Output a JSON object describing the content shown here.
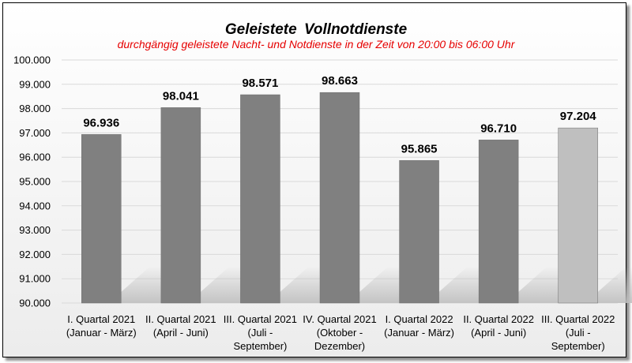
{
  "chart_data": {
    "type": "bar",
    "title": "Geleistete  Vollnotdienste",
    "subtitle": "durchgängig geleistete Nacht- und Notdienste in der Zeit von 20:00 bis 06:00 Uhr",
    "categories": [
      [
        "I. Quartal 2021",
        "(Januar - März)"
      ],
      [
        "II. Quartal 2021",
        "(April - Juni)"
      ],
      [
        "III. Quartal 2021",
        "(Juli -",
        "September)"
      ],
      [
        "IV. Quartal 2021",
        "(Oktober -",
        "Dezember)"
      ],
      [
        "I. Quartal 2022",
        "(Januar - März)"
      ],
      [
        "II. Quartal 2022",
        "(April - Juni)"
      ],
      [
        "III. Quartal 2022",
        "(Juli -",
        "September)"
      ]
    ],
    "values": [
      96936,
      98041,
      98571,
      98663,
      95865,
      96710,
      97204
    ],
    "value_labels": [
      "96.936",
      "98.041",
      "98.571",
      "98.663",
      "95.865",
      "96.710",
      "97.204"
    ],
    "bar_colors": [
      "#808080",
      "#808080",
      "#808080",
      "#808080",
      "#808080",
      "#808080",
      "#bfbfbf"
    ],
    "ylim": [
      90000,
      100000
    ],
    "y_ticks": [
      90000,
      91000,
      92000,
      93000,
      94000,
      95000,
      96000,
      97000,
      98000,
      99000,
      100000
    ],
    "y_tick_labels": [
      "90.000",
      "91.000",
      "92.000",
      "93.000",
      "94.000",
      "95.000",
      "96.000",
      "97.000",
      "98.000",
      "99.000",
      "100.000"
    ],
    "grid": true,
    "legend": "none"
  }
}
